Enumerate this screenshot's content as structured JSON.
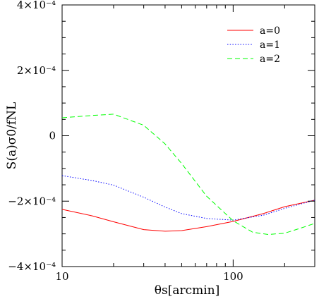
{
  "chart_data": {
    "type": "line",
    "xlabel": "θs[arcmin]",
    "ylabel": "S(a)σ0/fNL",
    "xscale": "log",
    "xlim": [
      10,
      300
    ],
    "ylim": [
      -0.0004,
      0.0004
    ],
    "grid": false,
    "legend_position": "top-right",
    "x_ticks": [
      {
        "value": 10,
        "label": "10"
      },
      {
        "value": 100,
        "label": "100"
      }
    ],
    "y_ticks": [
      {
        "value": 0.0004,
        "label": "4×10⁻⁴"
      },
      {
        "value": 0.0002,
        "label": "2×10⁻⁴"
      },
      {
        "value": 0,
        "label": "0"
      },
      {
        "value": -0.0002,
        "label": "−2×10⁻⁴"
      },
      {
        "value": -0.0004,
        "label": "−4×10⁻⁴"
      }
    ],
    "series": [
      {
        "name": "a=0",
        "color": "#ff0000",
        "dash": "solid",
        "points": [
          [
            10,
            -0.000225
          ],
          [
            15,
            -0.000245
          ],
          [
            20,
            -0.000263
          ],
          [
            30,
            -0.000287
          ],
          [
            40,
            -0.000292
          ],
          [
            50,
            -0.00029
          ],
          [
            70,
            -0.000278
          ],
          [
            100,
            -0.000262
          ],
          [
            150,
            -0.000238
          ],
          [
            200,
            -0.000217
          ],
          [
            300,
            -0.000197
          ]
        ]
      },
      {
        "name": "a=1",
        "color": "#0000ff",
        "dash": "dotted",
        "points": [
          [
            10,
            -0.000122
          ],
          [
            15,
            -0.000137
          ],
          [
            20,
            -0.000151
          ],
          [
            30,
            -0.000188
          ],
          [
            40,
            -0.000218
          ],
          [
            50,
            -0.000238
          ],
          [
            70,
            -0.000253
          ],
          [
            100,
            -0.000258
          ],
          [
            150,
            -0.000243
          ],
          [
            200,
            -0.000222
          ],
          [
            300,
            -0.000197
          ]
        ]
      },
      {
        "name": "a=2",
        "color": "#00ff00",
        "dash": "dashed",
        "points": [
          [
            10,
            5.5e-05
          ],
          [
            15,
            6.2e-05
          ],
          [
            20,
            6.6e-05
          ],
          [
            30,
            3.2e-05
          ],
          [
            40,
            -2.5e-05
          ],
          [
            50,
            -8.5e-05
          ],
          [
            70,
            -0.000185
          ],
          [
            100,
            -0.00026
          ],
          [
            130,
            -0.000295
          ],
          [
            160,
            -0.000302
          ],
          [
            200,
            -0.000298
          ],
          [
            250,
            -0.000282
          ],
          [
            300,
            -0.000268
          ]
        ]
      }
    ]
  }
}
